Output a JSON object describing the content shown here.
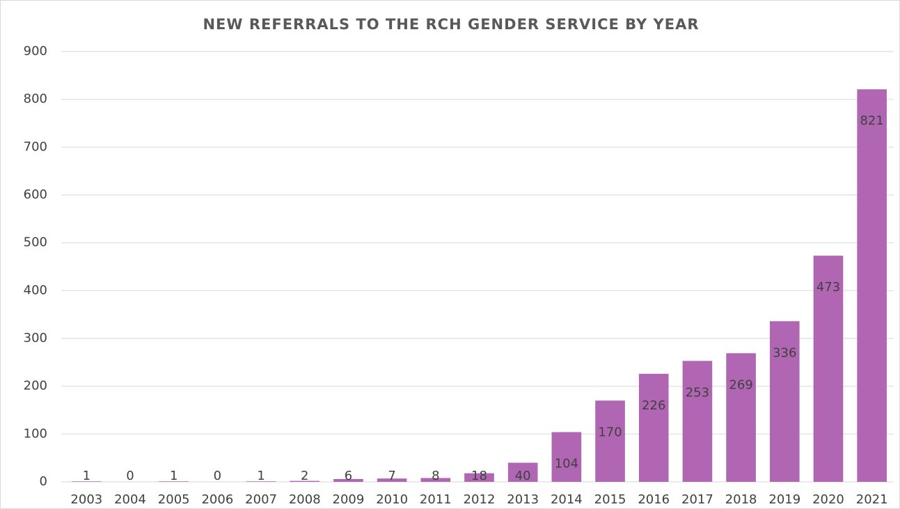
{
  "chart_data": {
    "type": "bar",
    "title": "NEW REFERRALS TO THE RCH GENDER SERVICE BY YEAR",
    "categories": [
      "2003",
      "2004",
      "2005",
      "2006",
      "2007",
      "2008",
      "2009",
      "2010",
      "2011",
      "2012",
      "2013",
      "2014",
      "2015",
      "2016",
      "2017",
      "2018",
      "2019",
      "2020",
      "2021"
    ],
    "values": [
      1,
      0,
      1,
      0,
      1,
      2,
      6,
      7,
      8,
      18,
      40,
      104,
      170,
      226,
      253,
      269,
      336,
      473,
      821
    ],
    "color": "#b066b3",
    "ylim": [
      0,
      900
    ],
    "yticks": [
      0,
      100,
      200,
      300,
      400,
      500,
      600,
      700,
      800,
      900
    ],
    "grid": true
  }
}
